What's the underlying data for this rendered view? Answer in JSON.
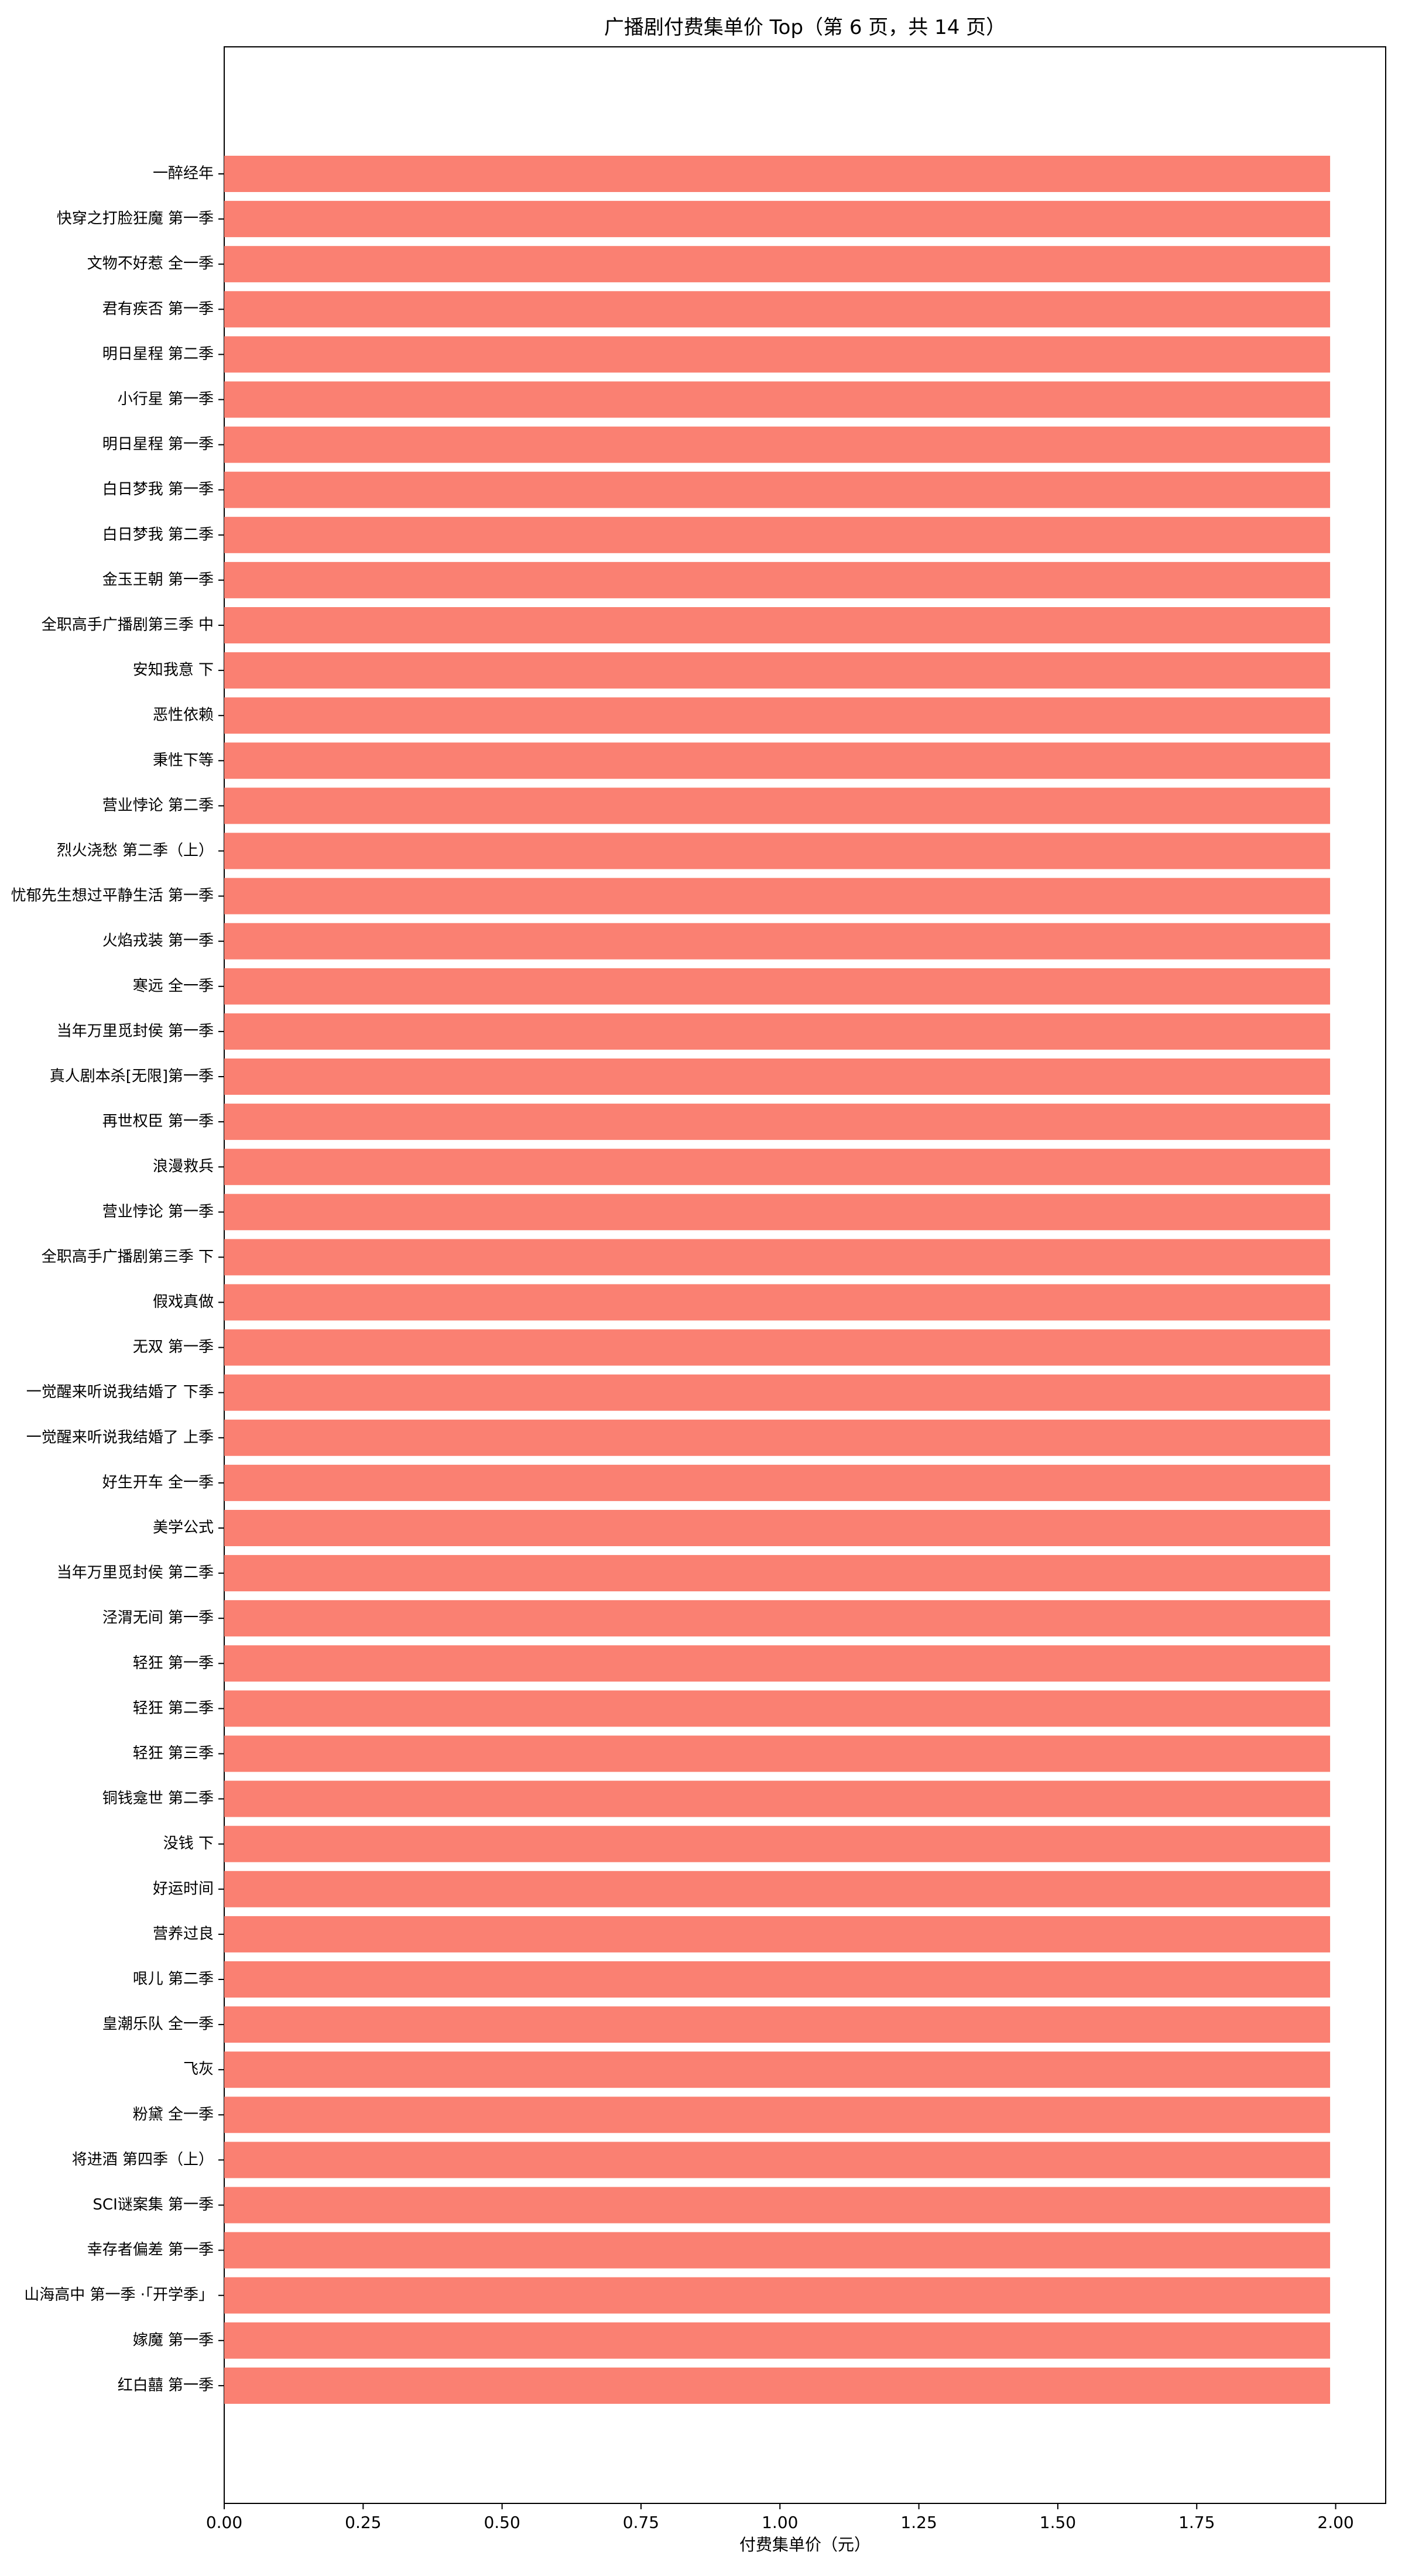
{
  "chart_data": {
    "type": "bar",
    "orientation": "horizontal",
    "title": "广播剧付费集单价 Top（第 6 页，共 14 页）",
    "xlabel": "付费集单价（元）",
    "ylabel": "",
    "xlim": [
      0,
      2.09
    ],
    "xticks": [
      "0.00",
      "0.25",
      "0.50",
      "0.75",
      "1.00",
      "1.25",
      "1.50",
      "1.75",
      "2.00"
    ],
    "bar_color": "#fa8072",
    "grid": false,
    "categories": [
      "一醉经年",
      "快穿之打脸狂魔 第一季",
      "文物不好惹 全一季",
      "君有疾否 第一季",
      "明日星程 第二季",
      "小行星 第一季",
      "明日星程 第一季",
      "白日梦我 第一季",
      "白日梦我 第二季",
      "金玉王朝 第一季",
      "全职高手广播剧第三季 中",
      "安知我意 下",
      "恶性依赖",
      "秉性下等",
      "营业悖论 第二季",
      "烈火浇愁 第二季（上）",
      "忧郁先生想过平静生活 第一季",
      "火焰戎装 第一季",
      "寒远 全一季",
      "当年万里觅封侯 第一季",
      "真人剧本杀[无限]第一季",
      "再世权臣 第一季",
      "浪漫救兵",
      "营业悖论 第一季",
      "全职高手广播剧第三季 下",
      "假戏真做",
      "无双 第一季",
      "一觉醒来听说我结婚了 下季",
      "一觉醒来听说我结婚了 上季",
      "好生开车 全一季",
      "美学公式",
      "当年万里觅封侯 第二季",
      "泾渭无间 第一季",
      "轻狂 第一季",
      "轻狂 第二季",
      "轻狂 第三季",
      "铜钱龛世 第二季",
      "没钱 下",
      "好运时间",
      "营养过良",
      "哏儿 第二季",
      "皇潮乐队 全一季",
      "飞灰",
      "粉黛 全一季",
      "将进酒 第四季（上）",
      "SCI谜案集 第一季",
      "幸存者偏差 第一季",
      "山海高中 第一季 ·「开学季」",
      "嫁魔 第一季",
      "红白囍 第一季"
    ],
    "values": [
      1.99,
      1.99,
      1.99,
      1.99,
      1.99,
      1.99,
      1.99,
      1.99,
      1.99,
      1.99,
      1.99,
      1.99,
      1.99,
      1.99,
      1.99,
      1.99,
      1.99,
      1.99,
      1.99,
      1.99,
      1.99,
      1.99,
      1.99,
      1.99,
      1.99,
      1.99,
      1.99,
      1.99,
      1.99,
      1.99,
      1.99,
      1.99,
      1.99,
      1.99,
      1.99,
      1.99,
      1.99,
      1.99,
      1.99,
      1.99,
      1.99,
      1.99,
      1.99,
      1.99,
      1.99,
      1.99,
      1.99,
      1.99,
      1.99,
      1.99
    ]
  }
}
